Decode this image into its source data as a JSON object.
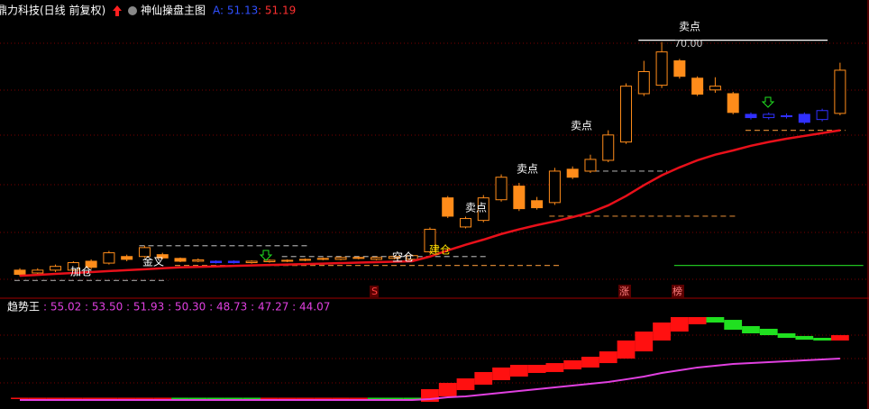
{
  "chart_data": [
    {
      "type": "candlestick",
      "title": "鼎力科技(日线 前复权)",
      "indicator_name": "神仙操盘主图",
      "indicator_labels": [
        "A: 51.13",
        ": 51.19"
      ],
      "ylim": [
        16,
        78
      ],
      "open": [
        21.4,
        20.8,
        21.4,
        21.4,
        23.3,
        22.9,
        24.3,
        24.3,
        24.7,
        23.9,
        23.3,
        23.3,
        23.3,
        23.0,
        23.2,
        23.3,
        23.5,
        23.7,
        23.7,
        23.9,
        23.7,
        23.9,
        23.7,
        25.3,
        36.8,
        30.6,
        32.0,
        36.4,
        39.3,
        36.2,
        35.8,
        42.9,
        42.5,
        44.8,
        48.7,
        59.0,
        60.8,
        66.0,
        62.3,
        59.8,
        59.0,
        54.6,
        53.9,
        54.3,
        54.6,
        53.5,
        54.8
      ],
      "close": [
        20.5,
        21.4,
        22.2,
        23.0,
        22.0,
        25.1,
        23.7,
        26.2,
        24.0,
        23.3,
        23.6,
        23.0,
        23.0,
        23.3,
        23.5,
        23.5,
        23.7,
        23.9,
        24.1,
        24.1,
        24.1,
        24.3,
        24.5,
        30.1,
        32.9,
        32.4,
        36.8,
        41.2,
        34.5,
        34.7,
        42.5,
        41.2,
        45.0,
        50.2,
        60.6,
        63.7,
        67.9,
        62.7,
        58.9,
        60.6,
        55.0,
        53.9,
        54.6,
        54.1,
        52.9,
        55.4,
        64.0
      ],
      "high": [
        21.8,
        21.8,
        22.6,
        23.3,
        23.7,
        25.5,
        24.7,
        26.6,
        25.1,
        24.1,
        23.9,
        23.5,
        23.5,
        23.5,
        23.7,
        23.7,
        23.9,
        24.1,
        24.3,
        24.3,
        24.3,
        24.5,
        24.7,
        30.5,
        37.2,
        32.8,
        37.4,
        41.8,
        40.0,
        37.0,
        43.2,
        43.5,
        46.0,
        51.2,
        61.2,
        66.0,
        70.0,
        66.4,
        62.7,
        62.5,
        59.4,
        55.0,
        55.0,
        54.8,
        55.0,
        55.8,
        65.6
      ],
      "low": [
        20.1,
        20.5,
        21.0,
        21.2,
        21.6,
        22.6,
        23.3,
        24.0,
        23.7,
        23.1,
        23.1,
        22.8,
        22.8,
        22.8,
        23.0,
        23.1,
        23.3,
        23.5,
        23.5,
        23.7,
        23.5,
        23.7,
        23.5,
        25.0,
        32.5,
        30.3,
        31.6,
        36.0,
        34.0,
        34.3,
        35.3,
        40.8,
        42.1,
        44.4,
        48.3,
        58.5,
        60.2,
        62.2,
        58.5,
        59.2,
        54.6,
        53.5,
        53.5,
        53.7,
        52.5,
        53.1,
        54.4
      ],
      "colors": [
        "#ff8c1a",
        "#ff8c1a",
        "#ff8c1a",
        "#ff8c1a",
        "#ff8c1a",
        "#ff8c1a",
        "#ff8c1a",
        "#ff8c1a",
        "#ff8c1a",
        "#ff8c1a",
        "#ff8c1a",
        "#3030ff",
        "#3030ff",
        "#ff8c1a",
        "#ff8c1a",
        "#ff8c1a",
        "#ff8c1a",
        "#ff8c1a",
        "#ff8c1a",
        "#ff8c1a",
        "#ff8c1a",
        "#ff8c1a",
        "#ff8c1a",
        "#ff8c1a",
        "#ff8c1a",
        "#ff8c1a",
        "#ff8c1a",
        "#ff8c1a",
        "#ff8c1a",
        "#ff8c1a",
        "#ff8c1a",
        "#ff8c1a",
        "#ff8c1a",
        "#ff8c1a",
        "#ff8c1a",
        "#ff8c1a",
        "#ff8c1a",
        "#ff8c1a",
        "#ff8c1a",
        "#ff8c1a",
        "#ff8c1a",
        "#3030ff",
        "#3030ff",
        "#3030ff",
        "#3030ff",
        "#3030ff",
        "#ff8c1a"
      ],
      "ma": {
        "color": "#e8101a",
        "values": [
          20.2,
          20.4,
          20.6,
          20.8,
          21.0,
          21.2,
          21.4,
          21.6,
          21.8,
          22.0,
          22.1,
          22.2,
          22.3,
          22.4,
          22.5,
          22.6,
          22.7,
          22.8,
          22.9,
          23.0,
          23.1,
          23.2,
          23.3,
          24.3,
          25.6,
          26.8,
          27.9,
          29.1,
          30.1,
          31.0,
          31.8,
          32.7,
          33.7,
          35.2,
          37.2,
          39.5,
          41.6,
          43.3,
          44.8,
          46.0,
          46.9,
          47.9,
          48.7,
          49.4,
          50.0,
          50.6,
          51.19
        ]
      },
      "levels": [
        {
          "value": 19.2,
          "start": 0,
          "end": 8,
          "color": "#a0a0a0",
          "dash": true
        },
        {
          "value": 26.6,
          "start": 7,
          "end": 16,
          "color": "#a0a0a0",
          "dash": true
        },
        {
          "value": 24.3,
          "start": 15,
          "end": 26,
          "color": "#a0a0a0",
          "dash": true
        },
        {
          "value": 22.4,
          "start": 9,
          "end": 30,
          "color": "#d08030",
          "dash": true
        },
        {
          "value": 32.9,
          "start": 30,
          "end": 40,
          "color": "#d08030",
          "dash": true
        },
        {
          "value": 42.5,
          "start": 32,
          "end": 36,
          "color": "#a0a0a0",
          "dash": true
        },
        {
          "value": 51.2,
          "start": 41,
          "end": 46,
          "color": "#d08030",
          "dash": true
        },
        {
          "value": 70.4,
          "start": 35,
          "end": 45,
          "color": "#ffffff",
          "dash": false
        },
        {
          "value": 22.4,
          "start": 37,
          "end": 47,
          "color": "#20c020",
          "dash": false
        }
      ],
      "annotations": [
        "卖点",
        "70.00",
        "卖点",
        "卖点",
        "卖点",
        "建仓",
        "空仓",
        "金叉",
        "加仓",
        "S",
        "涨",
        "榜"
      ]
    },
    {
      "type": "step-bar",
      "name": "趋势王",
      "values_text": ": 55.02 : 53.50 : 51.93 : 50.30 : 48.73 : 47.27 : 44.07",
      "ylim": [
        0,
        100
      ],
      "tops": [
        11,
        11,
        11,
        11,
        11,
        11,
        11,
        11,
        11,
        11,
        11,
        11,
        11,
        11,
        11,
        11,
        11,
        11,
        11,
        11,
        11,
        11,
        11,
        19.3,
        25.4,
        29.8,
        36.0,
        40.4,
        43.0,
        43.0,
        44.7,
        47.4,
        50.9,
        56.1,
        66.7,
        75.4,
        84.2,
        89.5,
        89.5,
        89.5,
        86.8,
        80.7,
        78.1,
        73.7,
        71.1,
        69.3,
        71.9
      ],
      "bottoms": [
        10,
        10,
        10,
        10,
        10,
        10,
        10,
        10,
        10,
        10,
        10,
        10,
        10,
        10,
        10,
        10,
        10,
        10,
        10,
        10,
        10,
        10,
        10,
        7.0,
        12.3,
        18.4,
        23.7,
        28.1,
        31.6,
        35.1,
        36.0,
        38.6,
        40.4,
        44.7,
        49.1,
        56.1,
        66.7,
        75.4,
        82.5,
        84.2,
        77.2,
        73.7,
        71.9,
        69.3,
        67.5,
        66.7,
        66.7
      ],
      "colors": [
        "#ff1010",
        "#ff1010",
        "#ff1010",
        "#ff1010",
        "#ff1010",
        "#ff1010",
        "#ff1010",
        "#ff1010",
        "#ff1010",
        "#20e020",
        "#20e020",
        "#20e020",
        "#20e020",
        "#20e020",
        "#ff1010",
        "#ff1010",
        "#ff1010",
        "#ff1010",
        "#ff1010",
        "#ff1010",
        "#20e020",
        "#20e020",
        "#20e020",
        "#ff1010",
        "#ff1010",
        "#ff1010",
        "#ff1010",
        "#ff1010",
        "#ff1010",
        "#ff1010",
        "#ff1010",
        "#ff1010",
        "#ff1010",
        "#ff1010",
        "#ff1010",
        "#ff1010",
        "#ff1010",
        "#ff1010",
        "#ff1010",
        "#20e020",
        "#20e020",
        "#20e020",
        "#20e020",
        "#20e020",
        "#20e020",
        "#20e020",
        "#ff1010"
      ],
      "line": {
        "color": "#e040e0",
        "values": [
          8.8,
          8.8,
          8.8,
          8.8,
          8.8,
          8.8,
          8.8,
          8.8,
          8.8,
          8.8,
          8.8,
          8.8,
          8.8,
          8.8,
          8.8,
          8.8,
          8.8,
          8.8,
          8.8,
          8.8,
          8.8,
          8.8,
          8.8,
          9.6,
          11.4,
          12.3,
          14.0,
          15.8,
          17.5,
          19.3,
          21.1,
          22.8,
          24.6,
          26.3,
          28.9,
          31.6,
          35.1,
          37.7,
          40.4,
          42.1,
          43.9,
          44.7,
          45.6,
          46.5,
          47.4,
          48.2,
          49.1
        ]
      }
    }
  ]
}
